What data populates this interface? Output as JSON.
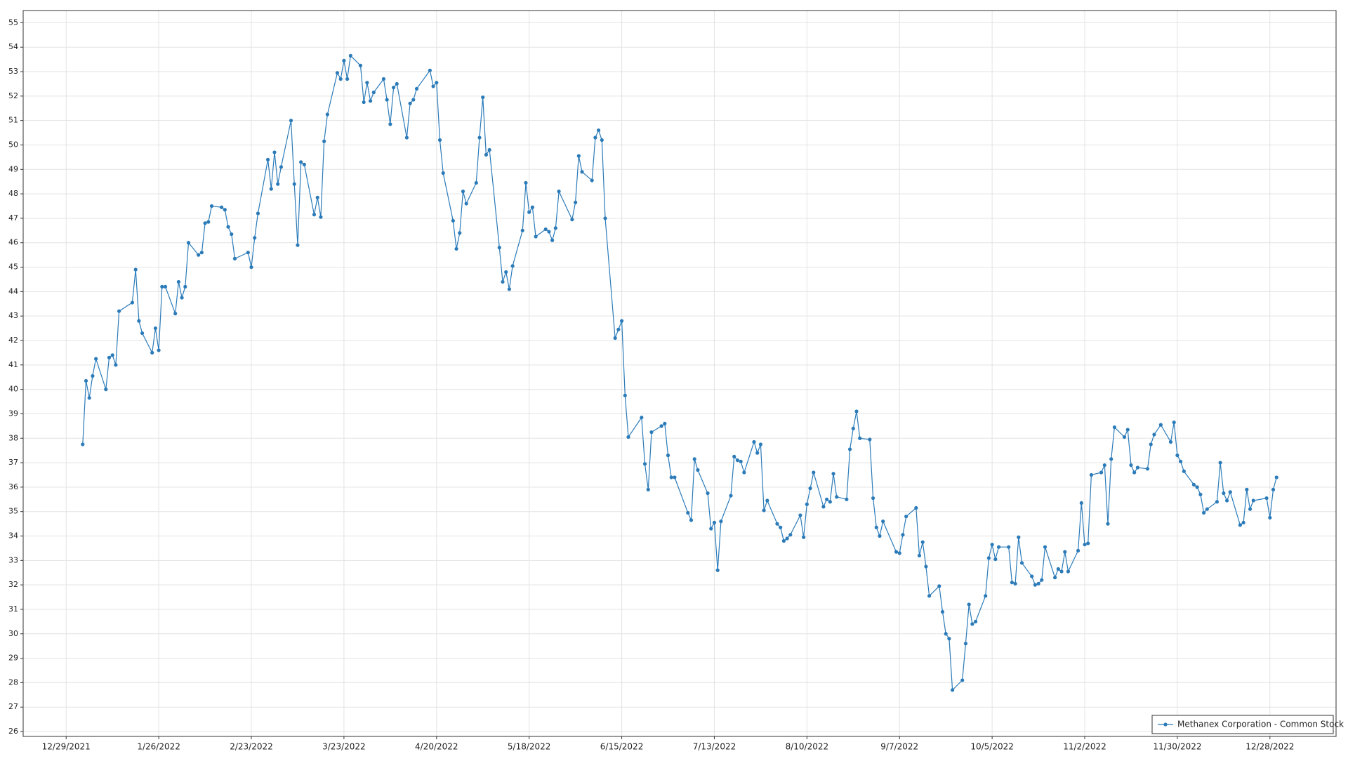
{
  "chart_data": {
    "type": "line",
    "x": [
      "2022-01-03",
      "2022-01-04",
      "2022-01-05",
      "2022-01-06",
      "2022-01-07",
      "2022-01-10",
      "2022-01-11",
      "2022-01-12",
      "2022-01-13",
      "2022-01-14",
      "2022-01-18",
      "2022-01-19",
      "2022-01-20",
      "2022-01-21",
      "2022-01-24",
      "2022-01-25",
      "2022-01-26",
      "2022-01-27",
      "2022-01-28",
      "2022-01-31",
      "2022-02-01",
      "2022-02-02",
      "2022-02-03",
      "2022-02-04",
      "2022-02-07",
      "2022-02-08",
      "2022-02-09",
      "2022-02-10",
      "2022-02-11",
      "2022-02-14",
      "2022-02-15",
      "2022-02-16",
      "2022-02-17",
      "2022-02-18",
      "2022-02-22",
      "2022-02-23",
      "2022-02-24",
      "2022-02-25",
      "2022-02-28",
      "2022-03-01",
      "2022-03-02",
      "2022-03-03",
      "2022-03-04",
      "2022-03-07",
      "2022-03-08",
      "2022-03-09",
      "2022-03-10",
      "2022-03-11",
      "2022-03-14",
      "2022-03-15",
      "2022-03-16",
      "2022-03-17",
      "2022-03-18",
      "2022-03-21",
      "2022-03-22",
      "2022-03-23",
      "2022-03-24",
      "2022-03-25",
      "2022-03-28",
      "2022-03-29",
      "2022-03-30",
      "2022-03-31",
      "2022-04-01",
      "2022-04-04",
      "2022-04-05",
      "2022-04-06",
      "2022-04-07",
      "2022-04-08",
      "2022-04-11",
      "2022-04-12",
      "2022-04-13",
      "2022-04-14",
      "2022-04-18",
      "2022-04-19",
      "2022-04-20",
      "2022-04-21",
      "2022-04-22",
      "2022-04-25",
      "2022-04-26",
      "2022-04-27",
      "2022-04-28",
      "2022-04-29",
      "2022-05-02",
      "2022-05-03",
      "2022-05-04",
      "2022-05-05",
      "2022-05-06",
      "2022-05-09",
      "2022-05-10",
      "2022-05-11",
      "2022-05-12",
      "2022-05-13",
      "2022-05-16",
      "2022-05-17",
      "2022-05-18",
      "2022-05-19",
      "2022-05-20",
      "2022-05-23",
      "2022-05-24",
      "2022-05-25",
      "2022-05-26",
      "2022-05-27",
      "2022-05-31",
      "2022-06-01",
      "2022-06-02",
      "2022-06-03",
      "2022-06-06",
      "2022-06-07",
      "2022-06-08",
      "2022-06-09",
      "2022-06-10",
      "2022-06-13",
      "2022-06-14",
      "2022-06-15",
      "2022-06-16",
      "2022-06-17",
      "2022-06-21",
      "2022-06-22",
      "2022-06-23",
      "2022-06-24",
      "2022-06-27",
      "2022-06-28",
      "2022-06-29",
      "2022-06-30",
      "2022-07-01",
      "2022-07-05",
      "2022-07-06",
      "2022-07-07",
      "2022-07-08",
      "2022-07-11",
      "2022-07-12",
      "2022-07-13",
      "2022-07-14",
      "2022-07-15",
      "2022-07-18",
      "2022-07-19",
      "2022-07-20",
      "2022-07-21",
      "2022-07-22",
      "2022-07-25",
      "2022-07-26",
      "2022-07-27",
      "2022-07-28",
      "2022-07-29",
      "2022-08-01",
      "2022-08-02",
      "2022-08-03",
      "2022-08-04",
      "2022-08-05",
      "2022-08-08",
      "2022-08-09",
      "2022-08-10",
      "2022-08-11",
      "2022-08-12",
      "2022-08-15",
      "2022-08-16",
      "2022-08-17",
      "2022-08-18",
      "2022-08-19",
      "2022-08-22",
      "2022-08-23",
      "2022-08-24",
      "2022-08-25",
      "2022-08-26",
      "2022-08-29",
      "2022-08-30",
      "2022-08-31",
      "2022-09-01",
      "2022-09-02",
      "2022-09-06",
      "2022-09-07",
      "2022-09-08",
      "2022-09-09",
      "2022-09-12",
      "2022-09-13",
      "2022-09-14",
      "2022-09-15",
      "2022-09-16",
      "2022-09-19",
      "2022-09-20",
      "2022-09-21",
      "2022-09-22",
      "2022-09-23",
      "2022-09-26",
      "2022-09-27",
      "2022-09-28",
      "2022-09-29",
      "2022-09-30",
      "2022-10-03",
      "2022-10-04",
      "2022-10-05",
      "2022-10-06",
      "2022-10-07",
      "2022-10-10",
      "2022-10-11",
      "2022-10-12",
      "2022-10-13",
      "2022-10-14",
      "2022-10-17",
      "2022-10-18",
      "2022-10-19",
      "2022-10-20",
      "2022-10-21",
      "2022-10-24",
      "2022-10-25",
      "2022-10-26",
      "2022-10-27",
      "2022-10-28",
      "2022-10-31",
      "2022-11-01",
      "2022-11-02",
      "2022-11-03",
      "2022-11-04",
      "2022-11-07",
      "2022-11-08",
      "2022-11-09",
      "2022-11-10",
      "2022-11-11",
      "2022-11-14",
      "2022-11-15",
      "2022-11-16",
      "2022-11-17",
      "2022-11-18",
      "2022-11-21",
      "2022-11-22",
      "2022-11-23",
      "2022-11-25",
      "2022-11-28",
      "2022-11-29",
      "2022-11-30",
      "2022-12-01",
      "2022-12-02",
      "2022-12-05",
      "2022-12-06",
      "2022-12-07",
      "2022-12-08",
      "2022-12-09",
      "2022-12-12",
      "2022-12-13",
      "2022-12-14",
      "2022-12-15",
      "2022-12-16",
      "2022-12-19",
      "2022-12-20",
      "2022-12-21",
      "2022-12-22",
      "2022-12-23",
      "2022-12-27",
      "2022-12-28",
      "2022-12-29",
      "2022-12-30"
    ],
    "series": [
      {
        "name": "Methanex Corporation - Common Stock",
        "color": "#2b7bb9",
        "values": [
          37.75,
          40.35,
          39.65,
          40.55,
          41.25,
          40.0,
          41.3,
          41.4,
          41.0,
          43.2,
          43.55,
          44.9,
          42.8,
          42.3,
          41.5,
          42.5,
          41.6,
          44.2,
          44.2,
          43.1,
          44.4,
          43.75,
          44.2,
          46.0,
          45.5,
          45.6,
          46.8,
          46.85,
          47.5,
          47.45,
          47.35,
          46.65,
          46.35,
          45.35,
          45.6,
          45.0,
          46.2,
          47.2,
          49.4,
          48.2,
          49.7,
          48.4,
          49.1,
          51.0,
          48.4,
          45.9,
          49.3,
          49.2,
          47.15,
          47.85,
          47.05,
          50.15,
          51.25,
          52.95,
          52.7,
          53.45,
          52.7,
          53.65,
          53.25,
          51.75,
          52.55,
          51.8,
          52.15,
          52.7,
          51.85,
          50.85,
          52.35,
          52.5,
          50.3,
          51.7,
          51.85,
          52.3,
          53.05,
          52.4,
          52.55,
          50.2,
          48.85,
          46.9,
          45.75,
          46.4,
          48.1,
          47.6,
          48.45,
          50.3,
          51.95,
          49.6,
          49.8,
          45.8,
          44.4,
          44.8,
          44.1,
          45.05,
          46.5,
          48.45,
          47.25,
          47.45,
          46.25,
          46.55,
          46.45,
          46.1,
          46.6,
          48.1,
          46.95,
          47.65,
          49.55,
          48.9,
          48.55,
          50.3,
          50.6,
          50.2,
          47.0,
          42.1,
          42.45,
          42.8,
          39.75,
          38.05,
          38.85,
          36.95,
          35.9,
          38.25,
          38.5,
          38.6,
          37.3,
          36.4,
          36.4,
          34.95,
          34.65,
          37.15,
          36.7,
          35.75,
          34.3,
          34.55,
          32.6,
          34.6,
          35.65,
          37.25,
          37.1,
          37.05,
          36.6,
          37.85,
          37.4,
          37.75,
          35.05,
          35.45,
          34.5,
          34.35,
          33.8,
          33.9,
          34.05,
          34.85,
          33.95,
          35.3,
          35.95,
          36.6,
          35.2,
          35.5,
          35.4,
          36.55,
          35.6,
          35.5,
          37.55,
          38.4,
          39.1,
          38.0,
          37.95,
          35.55,
          34.35,
          34.0,
          34.6,
          33.35,
          33.3,
          34.05,
          34.8,
          35.15,
          33.2,
          33.75,
          32.75,
          31.55,
          31.95,
          30.9,
          30.0,
          29.8,
          27.7,
          28.1,
          29.6,
          31.2,
          30.4,
          30.5,
          31.55,
          33.1,
          33.65,
          33.05,
          33.55,
          33.55,
          32.1,
          32.05,
          33.95,
          32.9,
          32.35,
          32.0,
          32.05,
          32.2,
          33.55,
          32.3,
          32.65,
          32.55,
          33.35,
          32.55,
          33.4,
          35.35,
          33.65,
          33.7,
          36.5,
          36.6,
          36.9,
          34.5,
          37.15,
          38.45,
          38.05,
          38.35,
          36.9,
          36.6,
          36.8,
          36.75,
          37.75,
          38.15,
          38.55,
          37.85,
          38.65,
          37.3,
          37.05,
          36.65,
          36.1,
          36.0,
          35.7,
          34.95,
          35.1,
          35.4,
          37.0,
          35.75,
          35.45,
          35.8,
          34.45,
          34.55,
          35.9,
          35.1,
          35.45,
          35.55,
          34.75,
          35.9,
          36.4
        ]
      }
    ],
    "xlim": [
      "2021-12-16",
      "2023-01-17"
    ],
    "xticks": [
      {
        "value": "2021-12-29",
        "label": "12/29/2021"
      },
      {
        "value": "2022-01-26",
        "label": "1/26/2022"
      },
      {
        "value": "2022-02-23",
        "label": "2/23/2022"
      },
      {
        "value": "2022-03-23",
        "label": "3/23/2022"
      },
      {
        "value": "2022-04-20",
        "label": "4/20/2022"
      },
      {
        "value": "2022-05-18",
        "label": "5/18/2022"
      },
      {
        "value": "2022-06-15",
        "label": "6/15/2022"
      },
      {
        "value": "2022-07-13",
        "label": "7/13/2022"
      },
      {
        "value": "2022-08-10",
        "label": "8/10/2022"
      },
      {
        "value": "2022-09-07",
        "label": "9/7/2022"
      },
      {
        "value": "2022-10-05",
        "label": "10/5/2022"
      },
      {
        "value": "2022-11-02",
        "label": "11/2/2022"
      },
      {
        "value": "2022-11-30",
        "label": "11/30/2022"
      },
      {
        "value": "2022-12-28",
        "label": "12/28/2022"
      }
    ],
    "ylim": [
      25.8,
      55.5
    ],
    "yticks": [
      26,
      27,
      28,
      29,
      30,
      31,
      32,
      33,
      34,
      35,
      36,
      37,
      38,
      39,
      40,
      41,
      42,
      43,
      44,
      45,
      46,
      47,
      48,
      49,
      50,
      51,
      52,
      53,
      54,
      55
    ],
    "grid": true,
    "legend": "lower right"
  }
}
